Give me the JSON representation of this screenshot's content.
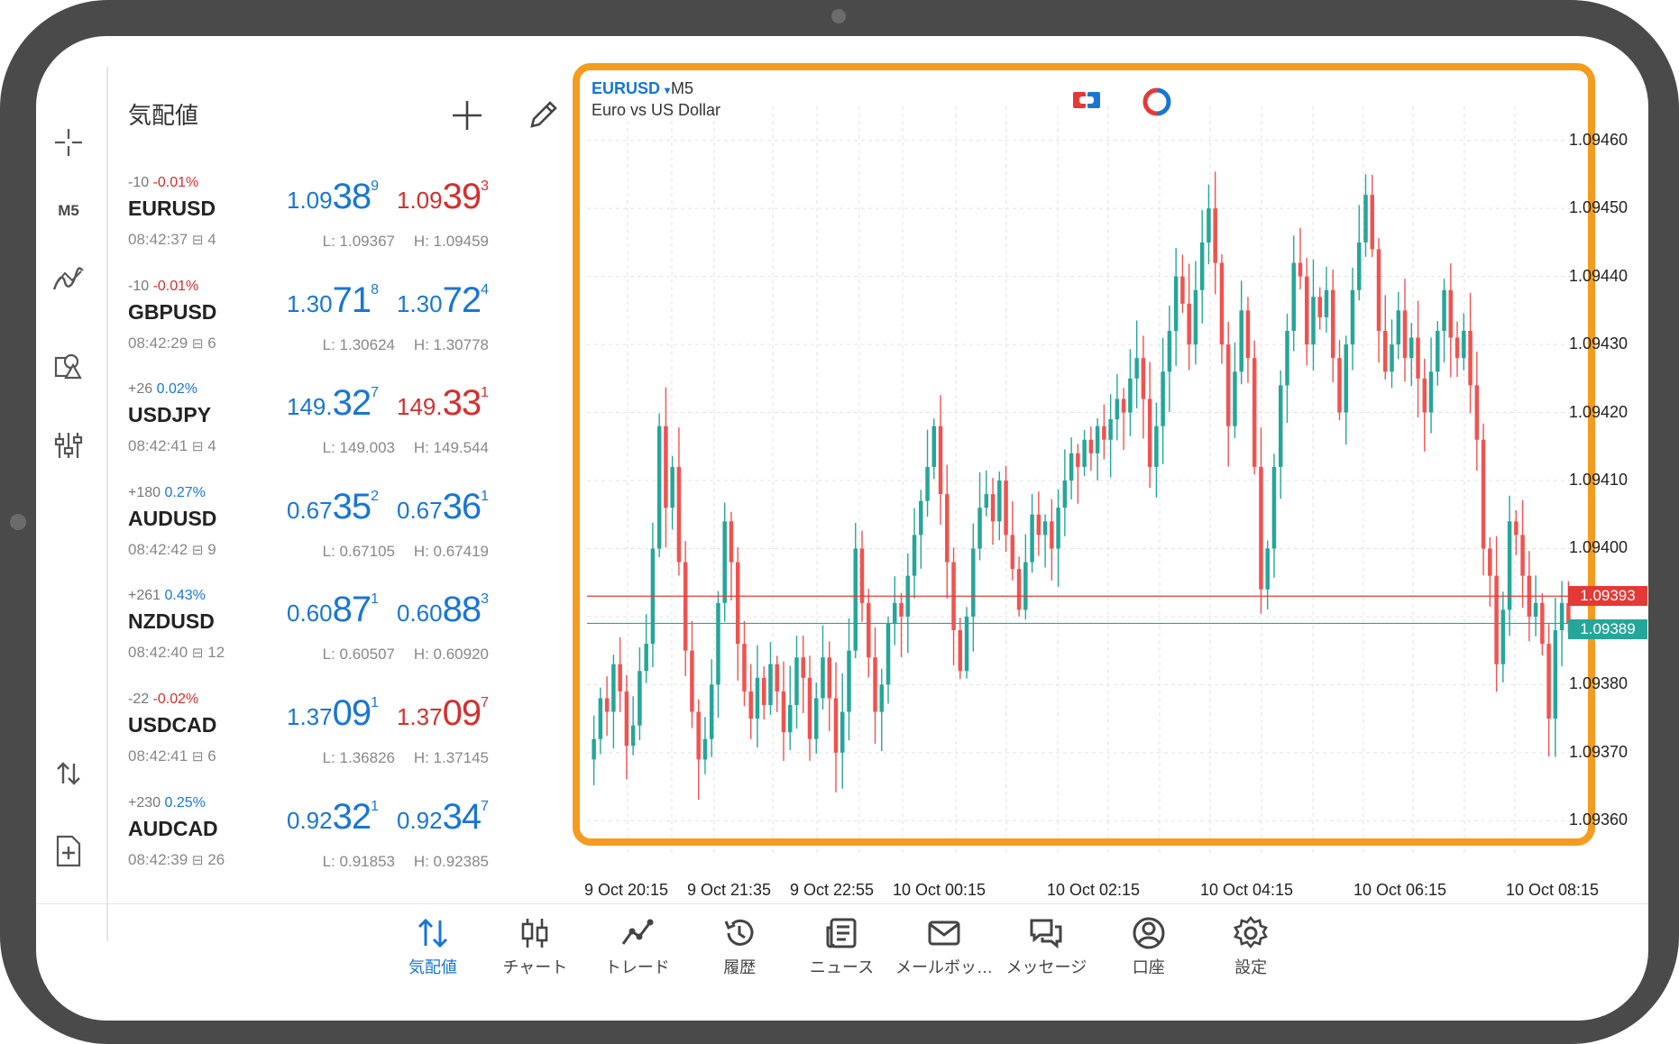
{
  "rail": {
    "timeframe": "M5"
  },
  "quotes": {
    "title": "気配値",
    "rows": [
      {
        "change": "-10",
        "pct": "-0.01%",
        "dir": "neg",
        "symbol": "EURUSD",
        "time": "08:42:37",
        "spread": "4",
        "bid": {
          "small": "1.09",
          "big": "38",
          "sup": "9",
          "color": "blue"
        },
        "ask": {
          "small": "1.09",
          "big": "39",
          "sup": "3",
          "color": "red"
        },
        "low": "L: 1.09367",
        "high": "H: 1.09459"
      },
      {
        "change": "-10",
        "pct": "-0.01%",
        "dir": "neg",
        "symbol": "GBPUSD",
        "time": "08:42:29",
        "spread": "6",
        "bid": {
          "small": "1.30",
          "big": "71",
          "sup": "8",
          "color": "blue"
        },
        "ask": {
          "small": "1.30",
          "big": "72",
          "sup": "4",
          "color": "blue"
        },
        "low": "L: 1.30624",
        "high": "H: 1.30778"
      },
      {
        "change": "+26",
        "pct": "0.02%",
        "dir": "pos",
        "symbol": "USDJPY",
        "time": "08:42:41",
        "spread": "4",
        "bid": {
          "small": "149.",
          "big": "32",
          "sup": "7",
          "color": "blue"
        },
        "ask": {
          "small": "149.",
          "big": "33",
          "sup": "1",
          "color": "red"
        },
        "low": "L: 149.003",
        "high": "H: 149.544"
      },
      {
        "change": "+180",
        "pct": "0.27%",
        "dir": "pos",
        "symbol": "AUDUSD",
        "time": "08:42:42",
        "spread": "9",
        "bid": {
          "small": "0.67",
          "big": "35",
          "sup": "2",
          "color": "blue"
        },
        "ask": {
          "small": "0.67",
          "big": "36",
          "sup": "1",
          "color": "blue"
        },
        "low": "L: 0.67105",
        "high": "H: 0.67419"
      },
      {
        "change": "+261",
        "pct": "0.43%",
        "dir": "pos",
        "symbol": "NZDUSD",
        "time": "08:42:40",
        "spread": "12",
        "bid": {
          "small": "0.60",
          "big": "87",
          "sup": "1",
          "color": "blue"
        },
        "ask": {
          "small": "0.60",
          "big": "88",
          "sup": "3",
          "color": "blue"
        },
        "low": "L: 0.60507",
        "high": "H: 0.60920"
      },
      {
        "change": "-22",
        "pct": "-0.02%",
        "dir": "neg",
        "symbol": "USDCAD",
        "time": "08:42:41",
        "spread": "6",
        "bid": {
          "small": "1.37",
          "big": "09",
          "sup": "1",
          "color": "blue"
        },
        "ask": {
          "small": "1.37",
          "big": "09",
          "sup": "7",
          "color": "red"
        },
        "low": "L: 1.36826",
        "high": "H: 1.37145"
      },
      {
        "change": "+230",
        "pct": "0.25%",
        "dir": "pos",
        "symbol": "AUDCAD",
        "time": "08:42:39",
        "spread": "26",
        "bid": {
          "small": "0.92",
          "big": "32",
          "sup": "1",
          "color": "blue"
        },
        "ask": {
          "small": "0.92",
          "big": "34",
          "sup": "7",
          "color": "blue"
        },
        "low": "L: 0.91853",
        "high": "H: 0.92385"
      }
    ]
  },
  "chart": {
    "symbol": "EURUSD",
    "symbol_dropdown": "▾",
    "timeframe": "M5",
    "description": "Euro vs US Dollar",
    "y_labels": [
      "1.09460",
      "1.09450",
      "1.09440",
      "1.09430",
      "1.09420",
      "1.09410",
      "1.09400",
      "1.09380",
      "1.09370",
      "1.09360"
    ],
    "x_labels": [
      "9 Oct 20:15",
      "9 Oct 21:35",
      "9 Oct 22:55",
      "10 Oct 00:15",
      "10 Oct 02:15",
      "10 Oct 04:15",
      "10 Oct 06:15",
      "10 Oct 08:15"
    ],
    "ask_price": "1.09393",
    "bid_price": "1.09389",
    "colors": {
      "up": "#26a69a",
      "down": "#ef5350",
      "frame": "#f39c1f",
      "ask": "#e53935",
      "bid": "#26a69a"
    }
  },
  "chart_data": {
    "type": "candlestick",
    "title": "EURUSD M5",
    "ylim": [
      1.09355,
      1.09465
    ],
    "x_ticks": [
      "9 Oct 20:15",
      "9 Oct 21:35",
      "9 Oct 22:55",
      "10 Oct 00:15",
      "10 Oct 02:15",
      "10 Oct 04:15",
      "10 Oct 06:15",
      "10 Oct 08:15"
    ],
    "ask_line": 1.09393,
    "bid_line": 1.09389,
    "close_path": [
      1.09372,
      1.09378,
      1.09376,
      1.09383,
      1.09379,
      1.09371,
      1.09374,
      1.09382,
      1.09386,
      1.094,
      1.09418,
      1.09406,
      1.09412,
      1.09398,
      1.09385,
      1.09376,
      1.09369,
      1.09372,
      1.0938,
      1.09392,
      1.09404,
      1.09398,
      1.09386,
      1.09379,
      1.09375,
      1.09381,
      1.09377,
      1.09383,
      1.09379,
      1.09373,
      1.09377,
      1.09384,
      1.09381,
      1.09372,
      1.09378,
      1.09384,
      1.09378,
      1.0937,
      1.09376,
      1.09385,
      1.094,
      1.09392,
      1.09384,
      1.09376,
      1.0938,
      1.09389,
      1.09392,
      1.0939,
      1.09396,
      1.09402,
      1.09407,
      1.09412,
      1.09418,
      1.09408,
      1.09398,
      1.09388,
      1.09382,
      1.0939,
      1.094,
      1.09406,
      1.09408,
      1.09404,
      1.0941,
      1.09402,
      1.09397,
      1.09391,
      1.09398,
      1.09405,
      1.09402,
      1.09404,
      1.094,
      1.09406,
      1.0941,
      1.09414,
      1.09412,
      1.09416,
      1.09414,
      1.09418,
      1.09416,
      1.09419,
      1.09422,
      1.0942,
      1.09425,
      1.09428,
      1.09422,
      1.09412,
      1.09418,
      1.09426,
      1.09432,
      1.0944,
      1.09436,
      1.0943,
      1.09438,
      1.09445,
      1.0945,
      1.09442,
      1.0943,
      1.09418,
      1.09426,
      1.09435,
      1.09428,
      1.09412,
      1.09394,
      1.094,
      1.09412,
      1.09424,
      1.09432,
      1.09442,
      1.0944,
      1.0943,
      1.09437,
      1.09434,
      1.09438,
      1.09428,
      1.0942,
      1.0943,
      1.09438,
      1.09445,
      1.09452,
      1.09444,
      1.09432,
      1.09426,
      1.0943,
      1.09435,
      1.09428,
      1.09431,
      1.09425,
      1.0942,
      1.09426,
      1.09432,
      1.09438,
      1.09431,
      1.09428,
      1.09432,
      1.09424,
      1.09416,
      1.094,
      1.09396,
      1.09383,
      1.09391,
      1.09404,
      1.09402,
      1.09396,
      1.0939,
      1.09392,
      1.09386,
      1.09375,
      1.09388,
      1.09392,
      1.09389
    ]
  },
  "nav": {
    "items": [
      {
        "label": "気配値",
        "icon": "arrows-updown-icon",
        "active": true
      },
      {
        "label": "チャート",
        "icon": "candles-icon",
        "active": false
      },
      {
        "label": "トレード",
        "icon": "trade-line-icon",
        "active": false
      },
      {
        "label": "履歴",
        "icon": "history-icon",
        "active": false
      },
      {
        "label": "ニュース",
        "icon": "news-icon",
        "active": false
      },
      {
        "label": "メールボッ…",
        "icon": "mail-icon",
        "active": false
      },
      {
        "label": "メッセージ",
        "icon": "chat-icon",
        "active": false
      },
      {
        "label": "口座",
        "icon": "account-icon",
        "active": false
      },
      {
        "label": "設定",
        "icon": "settings-icon",
        "active": false
      }
    ]
  }
}
